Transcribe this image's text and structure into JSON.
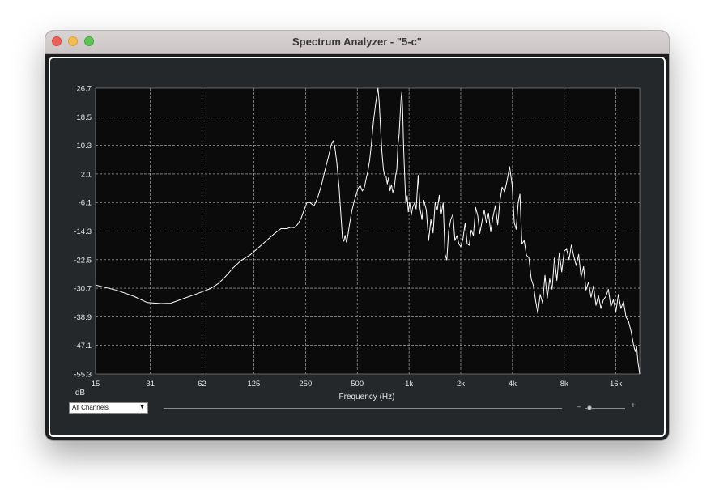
{
  "window": {
    "title": "Spectrum Analyzer - \"5-c\""
  },
  "controls": {
    "channel_select": "All Channels",
    "channel_arrow": "▼",
    "zoom_minus": "–",
    "zoom_plus": "+",
    "zoom_level": 0.05
  },
  "chart_data": {
    "type": "line",
    "title": "",
    "xlabel": "Frequency (Hz)",
    "ylabel": "dB",
    "x_scale": "log",
    "xlim": [
      15,
      22000
    ],
    "ylim": [
      -55.3,
      26.7
    ],
    "x_tick_labels": [
      "15",
      "31",
      "62",
      "125",
      "250",
      "500",
      "1k",
      "2k",
      "4k",
      "8k",
      "16k"
    ],
    "x_ticks": [
      15,
      31.25,
      62.5,
      125,
      250,
      500,
      1000,
      2000,
      4000,
      8000,
      16000
    ],
    "y_tick_labels": [
      "26.7",
      "18.5",
      "10.3",
      "2.1",
      "-6.1",
      "-14.3",
      "-22.5",
      "-30.7",
      "-38.9",
      "-47.1",
      "-55.3"
    ],
    "y_ticks": [
      26.7,
      18.5,
      10.3,
      2.1,
      -6.1,
      -14.3,
      -22.5,
      -30.7,
      -38.9,
      -47.1,
      -55.3
    ],
    "grid": true,
    "colors": {
      "line": "#ffffff",
      "plot_bg": "#0b0b0b",
      "grid": "#bdbdbd"
    },
    "series": [
      {
        "points": [
          [
            15,
            -29.8
          ],
          [
            20,
            -31.3
          ],
          [
            25,
            -33.0
          ],
          [
            30,
            -34.8
          ],
          [
            36,
            -35.1
          ],
          [
            41,
            -35.0
          ],
          [
            48,
            -33.8
          ],
          [
            56,
            -32.6
          ],
          [
            62,
            -31.8
          ],
          [
            70,
            -30.8
          ],
          [
            78,
            -29.3
          ],
          [
            85,
            -27.5
          ],
          [
            95,
            -24.8
          ],
          [
            105,
            -22.8
          ],
          [
            120,
            -21.0
          ],
          [
            135,
            -18.8
          ],
          [
            150,
            -16.8
          ],
          [
            165,
            -15.0
          ],
          [
            180,
            -13.6
          ],
          [
            195,
            -13.6
          ],
          [
            205,
            -13.2
          ],
          [
            215,
            -13.3
          ],
          [
            225,
            -12.4
          ],
          [
            235,
            -10.8
          ],
          [
            245,
            -8.3
          ],
          [
            255,
            -6.1
          ],
          [
            265,
            -6.1
          ],
          [
            280,
            -7.1
          ],
          [
            295,
            -4.5
          ],
          [
            310,
            -1.0
          ],
          [
            325,
            3.3
          ],
          [
            340,
            7.1
          ],
          [
            352,
            10.3
          ],
          [
            362,
            11.6
          ],
          [
            370,
            9.8
          ],
          [
            380,
            5.5
          ],
          [
            392,
            -2.0
          ],
          [
            402,
            -10.0
          ],
          [
            410,
            -16.2
          ],
          [
            418,
            -17.2
          ],
          [
            425,
            -15.5
          ],
          [
            433,
            -17.5
          ],
          [
            440,
            -15.8
          ],
          [
            452,
            -12.0
          ],
          [
            465,
            -8.5
          ],
          [
            478,
            -6.0
          ],
          [
            492,
            -4.0
          ],
          [
            505,
            -2.1
          ],
          [
            520,
            -1.2
          ],
          [
            535,
            -2.8
          ],
          [
            550,
            -1.8
          ],
          [
            560,
            0.2
          ],
          [
            575,
            2.7
          ],
          [
            590,
            6.0
          ],
          [
            605,
            11.0
          ],
          [
            622,
            17.4
          ],
          [
            638,
            21.9
          ],
          [
            650,
            24.8
          ],
          [
            660,
            26.7
          ],
          [
            670,
            23.0
          ],
          [
            682,
            16.0
          ],
          [
            695,
            8.5
          ],
          [
            710,
            3.4
          ],
          [
            722,
            1.6
          ],
          [
            735,
            1.5
          ],
          [
            748,
            -0.8
          ],
          [
            760,
            1.0
          ],
          [
            775,
            -2.7
          ],
          [
            790,
            -1.0
          ],
          [
            805,
            -3.2
          ],
          [
            820,
            -2.1
          ],
          [
            835,
            1.5
          ],
          [
            850,
            3.5
          ],
          [
            862,
            10.3
          ],
          [
            876,
            13.5
          ],
          [
            890,
            20.0
          ],
          [
            900,
            24.0
          ],
          [
            908,
            25.5
          ],
          [
            918,
            21.0
          ],
          [
            930,
            10.0
          ],
          [
            945,
            0.5
          ],
          [
            960,
            -6.5
          ],
          [
            975,
            -4.2
          ],
          [
            990,
            -8.8
          ],
          [
            1010,
            -6.0
          ],
          [
            1030,
            -9.8
          ],
          [
            1050,
            -7.5
          ],
          [
            1080,
            -6.1
          ],
          [
            1100,
            -8.0
          ],
          [
            1130,
            1.7
          ],
          [
            1160,
            -8.0
          ],
          [
            1190,
            -11.0
          ],
          [
            1220,
            -5.5
          ],
          [
            1260,
            -8.2
          ],
          [
            1300,
            -17.0
          ],
          [
            1340,
            -11.0
          ],
          [
            1380,
            -14.8
          ],
          [
            1420,
            -6.0
          ],
          [
            1460,
            -8.2
          ],
          [
            1500,
            -4.0
          ],
          [
            1540,
            -9.3
          ],
          [
            1580,
            -6.2
          ],
          [
            1620,
            -21.0
          ],
          [
            1660,
            -22.6
          ],
          [
            1700,
            -14.3
          ],
          [
            1750,
            -11.0
          ],
          [
            1800,
            -9.5
          ],
          [
            1850,
            -17.0
          ],
          [
            1900,
            -15.6
          ],
          [
            1950,
            -17.9
          ],
          [
            2000,
            -18.8
          ],
          [
            2060,
            -16.5
          ],
          [
            2120,
            -12.0
          ],
          [
            2180,
            -17.9
          ],
          [
            2240,
            -18.4
          ],
          [
            2300,
            -14.0
          ],
          [
            2370,
            -15.6
          ],
          [
            2440,
            -7.5
          ],
          [
            2510,
            -9.8
          ],
          [
            2580,
            -15.0
          ],
          [
            2660,
            -11.5
          ],
          [
            2740,
            -8.3
          ],
          [
            2820,
            -12.0
          ],
          [
            2900,
            -9.2
          ],
          [
            2990,
            -14.5
          ],
          [
            3080,
            -10.2
          ],
          [
            3180,
            -7.0
          ],
          [
            3280,
            -12.5
          ],
          [
            3380,
            -5.8
          ],
          [
            3480,
            -1.7
          ],
          [
            3600,
            -3.0
          ],
          [
            3720,
            0.2
          ],
          [
            3850,
            4.2
          ],
          [
            3980,
            -1.0
          ],
          [
            4100,
            -11.9
          ],
          [
            4200,
            -13.8
          ],
          [
            4320,
            -6.0
          ],
          [
            4420,
            -3.7
          ],
          [
            4540,
            -18.0
          ],
          [
            4680,
            -17.0
          ],
          [
            4820,
            -21.2
          ],
          [
            4980,
            -22.0
          ],
          [
            5140,
            -28.0
          ],
          [
            5300,
            -30.0
          ],
          [
            5460,
            -34.5
          ],
          [
            5620,
            -37.9
          ],
          [
            5800,
            -32.5
          ],
          [
            5990,
            -35.0
          ],
          [
            6180,
            -27.0
          ],
          [
            6380,
            -33.5
          ],
          [
            6590,
            -28.0
          ],
          [
            6800,
            -31.0
          ],
          [
            7020,
            -22.0
          ],
          [
            7250,
            -28.5
          ],
          [
            7490,
            -20.5
          ],
          [
            7740,
            -26.0
          ],
          [
            8000,
            -20.0
          ],
          [
            8260,
            -19.5
          ],
          [
            8530,
            -22.5
          ],
          [
            8810,
            -18.3
          ],
          [
            9100,
            -21.5
          ],
          [
            9400,
            -24.2
          ],
          [
            9710,
            -21.0
          ],
          [
            10030,
            -27.5
          ],
          [
            10370,
            -24.5
          ],
          [
            10720,
            -31.2
          ],
          [
            11080,
            -29.0
          ],
          [
            11460,
            -33.3
          ],
          [
            11850,
            -30.0
          ],
          [
            12250,
            -35.6
          ],
          [
            12660,
            -32.8
          ],
          [
            13090,
            -36.5
          ],
          [
            13530,
            -34.0
          ],
          [
            13990,
            -33.0
          ],
          [
            14460,
            -31.0
          ],
          [
            14950,
            -36.0
          ],
          [
            15460,
            -34.0
          ],
          [
            15990,
            -37.5
          ],
          [
            16540,
            -32.5
          ],
          [
            17110,
            -36.5
          ],
          [
            17700,
            -34.5
          ],
          [
            18310,
            -39.0
          ],
          [
            18940,
            -40.2
          ],
          [
            19580,
            -43.0
          ],
          [
            20240,
            -46.8
          ],
          [
            20700,
            -48.9
          ],
          [
            21100,
            -47.5
          ],
          [
            21500,
            -52.0
          ],
          [
            22000,
            -55.3
          ]
        ]
      }
    ]
  }
}
